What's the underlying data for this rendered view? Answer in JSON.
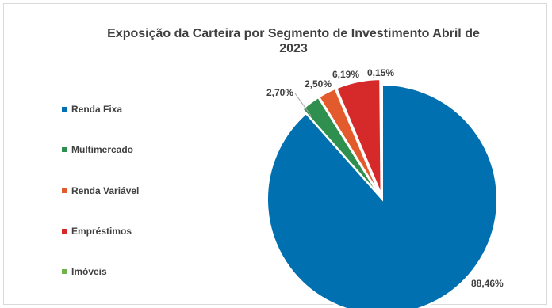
{
  "chart_data": {
    "type": "pie",
    "title": "Exposição da Carteira por Segmento de Investimento  Abril de 2023",
    "title_lines": [
      "Exposição da Carteira por Segmento de Investimento  Abril de",
      "2023"
    ],
    "series": [
      {
        "name": "Renda Fixa",
        "value": 88.46,
        "label": "88,46%",
        "color": "#0070b0"
      },
      {
        "name": "Multimercado",
        "value": 2.7,
        "label": "2,70%",
        "color": "#2f8f4e"
      },
      {
        "name": "Renda Variável",
        "value": 2.5,
        "label": "2,50%",
        "color": "#e35a2c"
      },
      {
        "name": "Empréstimos",
        "value": 6.19,
        "label": "6,19%",
        "color": "#d62a2a"
      },
      {
        "name": "Imóveis",
        "value": 0.15,
        "label": "0,15%",
        "color": "#6fb24a"
      }
    ],
    "legend_position": "left"
  }
}
